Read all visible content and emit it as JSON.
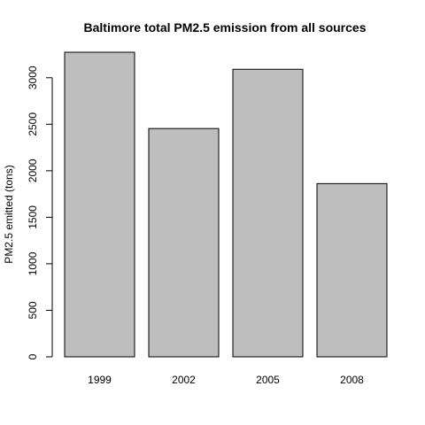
{
  "chart_data": {
    "type": "bar",
    "title": "Baltimore total PM2.5 emission from all sources",
    "xlabel": "",
    "ylabel": "PM2.5 emitted (tons)",
    "categories": [
      "1999",
      "2002",
      "2005",
      "2008"
    ],
    "values": [
      3274,
      2454,
      3091,
      1862
    ],
    "yticks": [
      0,
      500,
      1000,
      1500,
      2000,
      2500,
      3000
    ],
    "ylim": [
      0,
      3274
    ],
    "grid": false,
    "legend": "none",
    "bar_color": "#bebebe",
    "border_color": "#000000"
  }
}
